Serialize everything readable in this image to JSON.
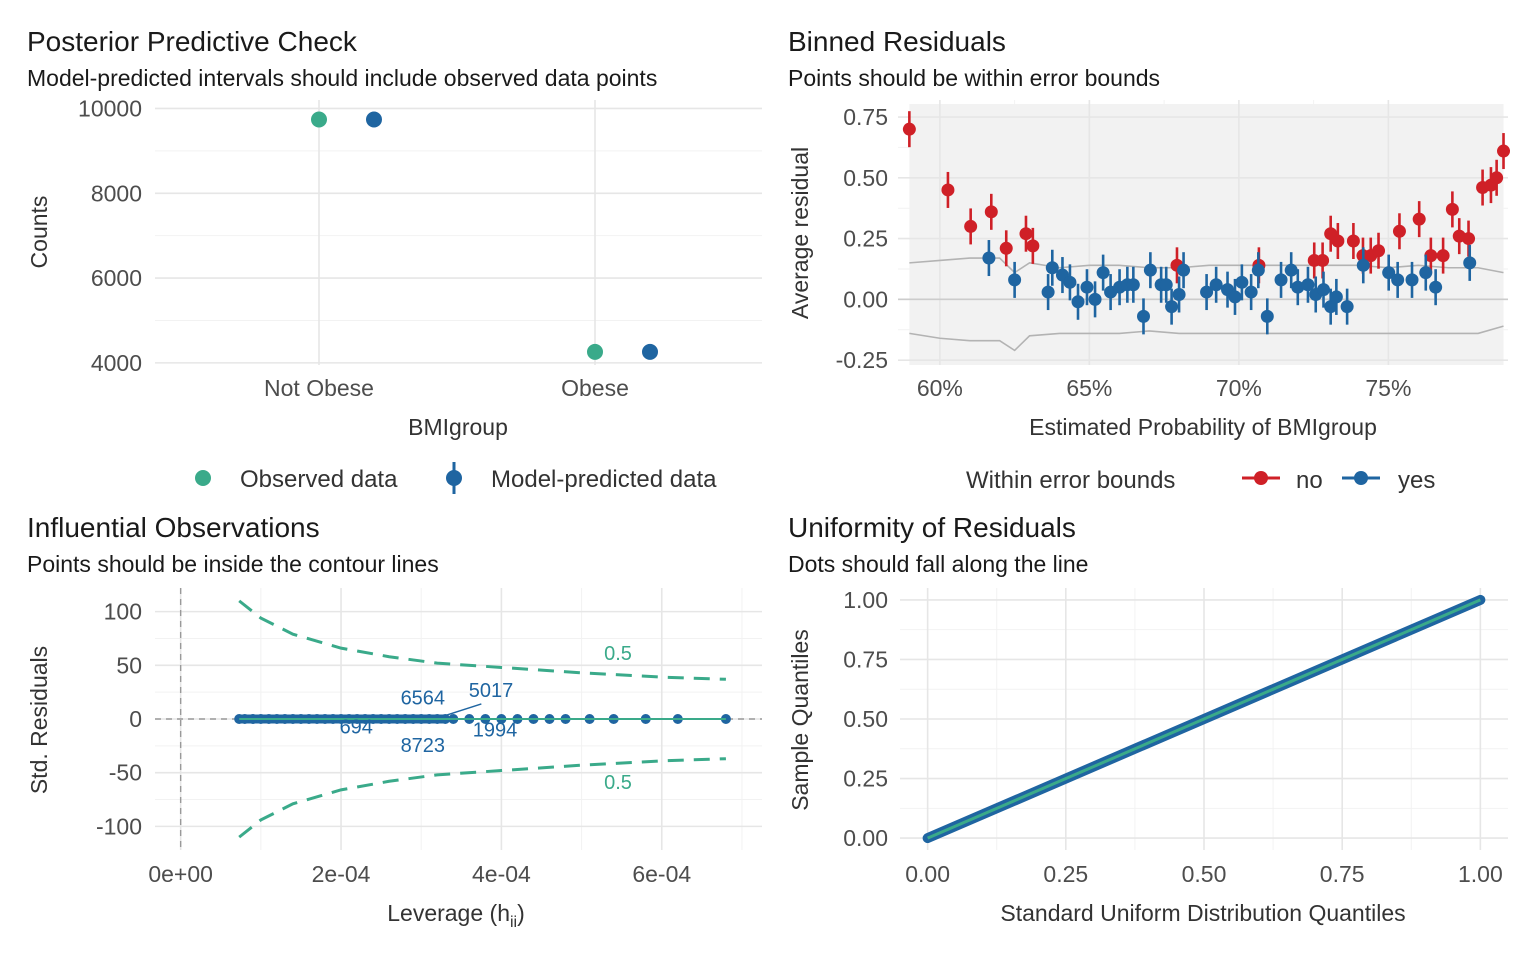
{
  "colors": {
    "observed": "#3aaa8a",
    "predicted": "#1f65a1",
    "no": "#cf2027",
    "yes": "#1f65a1",
    "contour": "#3aaa8a",
    "label": "#1f65a1",
    "band_bg": "#f2f2f2",
    "bound_line": "#b3b3b3",
    "ref_line": "#cccccc"
  },
  "panels": {
    "ppc": {
      "title": "Posterior Predictive Check",
      "subtitle": "Model-predicted intervals should include observed data points",
      "legend_observed": "Observed data",
      "legend_predicted": "Model-predicted data"
    },
    "binned": {
      "title": "Binned Residuals",
      "subtitle": "Points should be within error bounds",
      "legend_title": "Within error bounds",
      "legend_no": "no",
      "legend_yes": "yes"
    },
    "influential": {
      "title": "Influential Observations",
      "subtitle": "Points should be inside the contour lines"
    },
    "uniformity": {
      "title": "Uniformity of Residuals",
      "subtitle": "Dots should fall along the line"
    }
  },
  "chart_data": [
    {
      "id": "ppc",
      "type": "scatter",
      "title": "Posterior Predictive Check",
      "subtitle": "Model-predicted intervals should include observed data points",
      "xlabel": "BMIgroup",
      "ylabel": "Counts",
      "categories": [
        "Not Obese",
        "Obese"
      ],
      "ylim": [
        3950,
        10200
      ],
      "yticks": [
        4000,
        6000,
        8000,
        10000
      ],
      "series": [
        {
          "name": "Observed data",
          "values": [
            9740,
            4260
          ]
        },
        {
          "name": "Model-predicted data",
          "values": [
            9740,
            4260
          ]
        }
      ],
      "legend": "bottom"
    },
    {
      "id": "binned",
      "type": "scatter",
      "title": "Binned Residuals",
      "subtitle": "Points should be within error bounds",
      "xlabel": "Estimated Probability of BMIgroup",
      "ylabel": "Average residual",
      "xlim": [
        0.586,
        0.79
      ],
      "ylim": [
        -0.27,
        0.82
      ],
      "xticks": [
        0.6,
        0.65,
        0.7,
        0.75
      ],
      "xtick_labels": [
        "60%",
        "65%",
        "70%",
        "75%"
      ],
      "yticks": [
        -0.25,
        0,
        0.25,
        0.5,
        0.75
      ],
      "ytick_labels": [
        "-0.25",
        "0.00",
        "0.25",
        "0.50",
        "0.75"
      ],
      "legend": "bottom",
      "series": [
        {
          "name": "no",
          "points": [
            [
              0.5898,
              0.7
            ],
            [
              0.6027,
              0.45
            ],
            [
              0.6103,
              0.3
            ],
            [
              0.6172,
              0.36
            ],
            [
              0.6222,
              0.21
            ],
            [
              0.6288,
              0.27
            ],
            [
              0.6311,
              0.22
            ],
            [
              0.6793,
              0.14
            ],
            [
              0.7067,
              0.14
            ],
            [
              0.7252,
              0.16
            ],
            [
              0.728,
              0.16
            ],
            [
              0.7307,
              0.27
            ],
            [
              0.7331,
              0.24
            ],
            [
              0.7383,
              0.24
            ],
            [
              0.7415,
              0.18
            ],
            [
              0.7441,
              0.18
            ],
            [
              0.7467,
              0.2
            ],
            [
              0.7537,
              0.28
            ],
            [
              0.7603,
              0.33
            ],
            [
              0.7642,
              0.18
            ],
            [
              0.7683,
              0.18
            ],
            [
              0.7714,
              0.37
            ],
            [
              0.7737,
              0.26
            ],
            [
              0.7768,
              0.25
            ],
            [
              0.7815,
              0.46
            ],
            [
              0.7843,
              0.47
            ],
            [
              0.7862,
              0.5
            ],
            [
              0.7885,
              0.61
            ]
          ]
        },
        {
          "name": "yes",
          "points": [
            [
              0.6164,
              0.17
            ],
            [
              0.625,
              0.08
            ],
            [
              0.6362,
              0.03
            ],
            [
              0.6376,
              0.13
            ],
            [
              0.641,
              0.1
            ],
            [
              0.6435,
              0.07
            ],
            [
              0.6462,
              -0.01
            ],
            [
              0.6492,
              0.05
            ],
            [
              0.6519,
              0.0
            ],
            [
              0.6546,
              0.11
            ],
            [
              0.6571,
              0.03
            ],
            [
              0.6601,
              0.05
            ],
            [
              0.6627,
              0.06
            ],
            [
              0.6647,
              0.06
            ],
            [
              0.6681,
              -0.07
            ],
            [
              0.6704,
              0.12
            ],
            [
              0.674,
              0.06
            ],
            [
              0.6757,
              0.06
            ],
            [
              0.6775,
              -0.03
            ],
            [
              0.68,
              0.02
            ],
            [
              0.6815,
              0.12
            ],
            [
              0.6892,
              0.03
            ],
            [
              0.6924,
              0.06
            ],
            [
              0.6962,
              0.04
            ],
            [
              0.6987,
              0.01
            ],
            [
              0.701,
              0.07
            ],
            [
              0.7041,
              0.03
            ],
            [
              0.7065,
              0.12
            ],
            [
              0.7095,
              -0.07
            ],
            [
              0.7141,
              0.08
            ],
            [
              0.7175,
              0.12
            ],
            [
              0.7197,
              0.05
            ],
            [
              0.7231,
              0.06
            ],
            [
              0.7257,
              0.02
            ],
            [
              0.7283,
              0.04
            ],
            [
              0.7307,
              -0.03
            ],
            [
              0.7326,
              0.01
            ],
            [
              0.7362,
              -0.03
            ],
            [
              0.7416,
              0.14
            ],
            [
              0.7501,
              0.11
            ],
            [
              0.7531,
              0.08
            ],
            [
              0.7579,
              0.08
            ],
            [
              0.7625,
              0.11
            ],
            [
              0.7658,
              0.05
            ],
            [
              0.7772,
              0.15
            ]
          ]
        }
      ],
      "bounds_x": [
        0.5898,
        0.6,
        0.61,
        0.62,
        0.625,
        0.63,
        0.64,
        0.65,
        0.66,
        0.67,
        0.68,
        0.69,
        0.7,
        0.71,
        0.72,
        0.73,
        0.74,
        0.75,
        0.76,
        0.77,
        0.78,
        0.7885
      ],
      "upper_bound": [
        0.15,
        0.16,
        0.17,
        0.17,
        0.11,
        0.15,
        0.13,
        0.14,
        0.14,
        0.13,
        0.13,
        0.14,
        0.14,
        0.14,
        0.14,
        0.14,
        0.14,
        0.13,
        0.14,
        0.13,
        0.13,
        0.11
      ],
      "lower_bound": [
        -0.14,
        -0.16,
        -0.17,
        -0.17,
        -0.21,
        -0.15,
        -0.14,
        -0.14,
        -0.14,
        -0.13,
        -0.14,
        -0.14,
        -0.14,
        -0.14,
        -0.14,
        -0.14,
        -0.14,
        -0.14,
        -0.14,
        -0.14,
        -0.14,
        -0.11
      ]
    },
    {
      "id": "influential",
      "type": "scatter",
      "title": "Influential Observations",
      "subtitle": "Points should be inside the contour lines",
      "xlabel": "Leverage (hii)",
      "ylabel": "Std. Residuals",
      "xlim": [
        -3.2e-05,
        0.000725
      ],
      "ylim": [
        -122,
        122
      ],
      "xticks": [
        0,
        0.0002,
        0.0004,
        0.0006
      ],
      "xtick_labels": [
        "0e+00",
        "2e-04",
        "4e-04",
        "6e-04"
      ],
      "yticks": [
        -100,
        -50,
        0,
        50,
        100
      ],
      "ytick_labels": [
        "-100",
        "-50",
        "0",
        "50",
        "100"
      ],
      "points_x": [
        7.3e-05,
        8e-05,
        9e-05,
        0.0001,
        0.00011,
        0.00012,
        0.00013,
        0.00014,
        0.00015,
        0.00016,
        0.00017,
        0.00018,
        0.00019,
        0.0002,
        0.00021,
        0.00022,
        0.00023,
        0.00024,
        0.00025,
        0.00026,
        0.00027,
        0.00028,
        0.00029,
        0.0003,
        0.00031,
        0.00032,
        0.00033,
        0.00034,
        0.00036,
        0.00038,
        0.0004,
        0.00042,
        0.00044,
        0.00046,
        0.00048,
        0.00051,
        0.00054,
        0.00058,
        0.00062,
        0.00068
      ],
      "points_y": 0,
      "contour_label": "0.5",
      "contour_upper": [
        [
          7.3e-05,
          110
        ],
        [
          0.0001,
          94
        ],
        [
          0.00014,
          79
        ],
        [
          0.0002,
          66
        ],
        [
          0.00026,
          58
        ],
        [
          0.00032,
          52
        ],
        [
          0.0004,
          48
        ],
        [
          0.0005,
          43
        ],
        [
          0.0006,
          39
        ],
        [
          0.00068,
          37
        ]
      ],
      "contour_lower": [
        [
          7.3e-05,
          -110
        ],
        [
          0.0001,
          -94
        ],
        [
          0.00014,
          -79
        ],
        [
          0.0002,
          -66
        ],
        [
          0.00026,
          -58
        ],
        [
          0.00032,
          -52
        ],
        [
          0.0004,
          -48
        ],
        [
          0.0005,
          -43
        ],
        [
          0.0006,
          -39
        ],
        [
          0.00068,
          -37
        ]
      ],
      "labels": [
        {
          "text": "6564",
          "x": 0.000302,
          "y": 20
        },
        {
          "text": "5017",
          "x": 0.000387,
          "y": 27
        },
        {
          "text": "694",
          "x": 0.000219,
          "y": -7
        },
        {
          "text": "8723",
          "x": 0.000302,
          "y": -24
        },
        {
          "text": "1994",
          "x": 0.000392,
          "y": -10
        }
      ]
    },
    {
      "id": "uniformity",
      "type": "scatter",
      "title": "Uniformity of Residuals",
      "subtitle": "Dots should fall along the line",
      "xlabel": "Standard Uniform Distribution Quantiles",
      "ylabel": "Sample Quantiles",
      "xlim": [
        -0.05,
        1.05
      ],
      "ylim": [
        -0.05,
        1.05
      ],
      "xticks": [
        0,
        0.25,
        0.5,
        0.75,
        1
      ],
      "xtick_labels": [
        "0.00",
        "0.25",
        "0.50",
        "0.75",
        "1.00"
      ],
      "yticks": [
        0,
        0.25,
        0.5,
        0.75,
        1
      ],
      "ytick_labels": [
        "0.00",
        "0.25",
        "0.50",
        "0.75",
        "1.00"
      ],
      "reference_line": [
        [
          0,
          0
        ],
        [
          1,
          1
        ]
      ]
    }
  ]
}
